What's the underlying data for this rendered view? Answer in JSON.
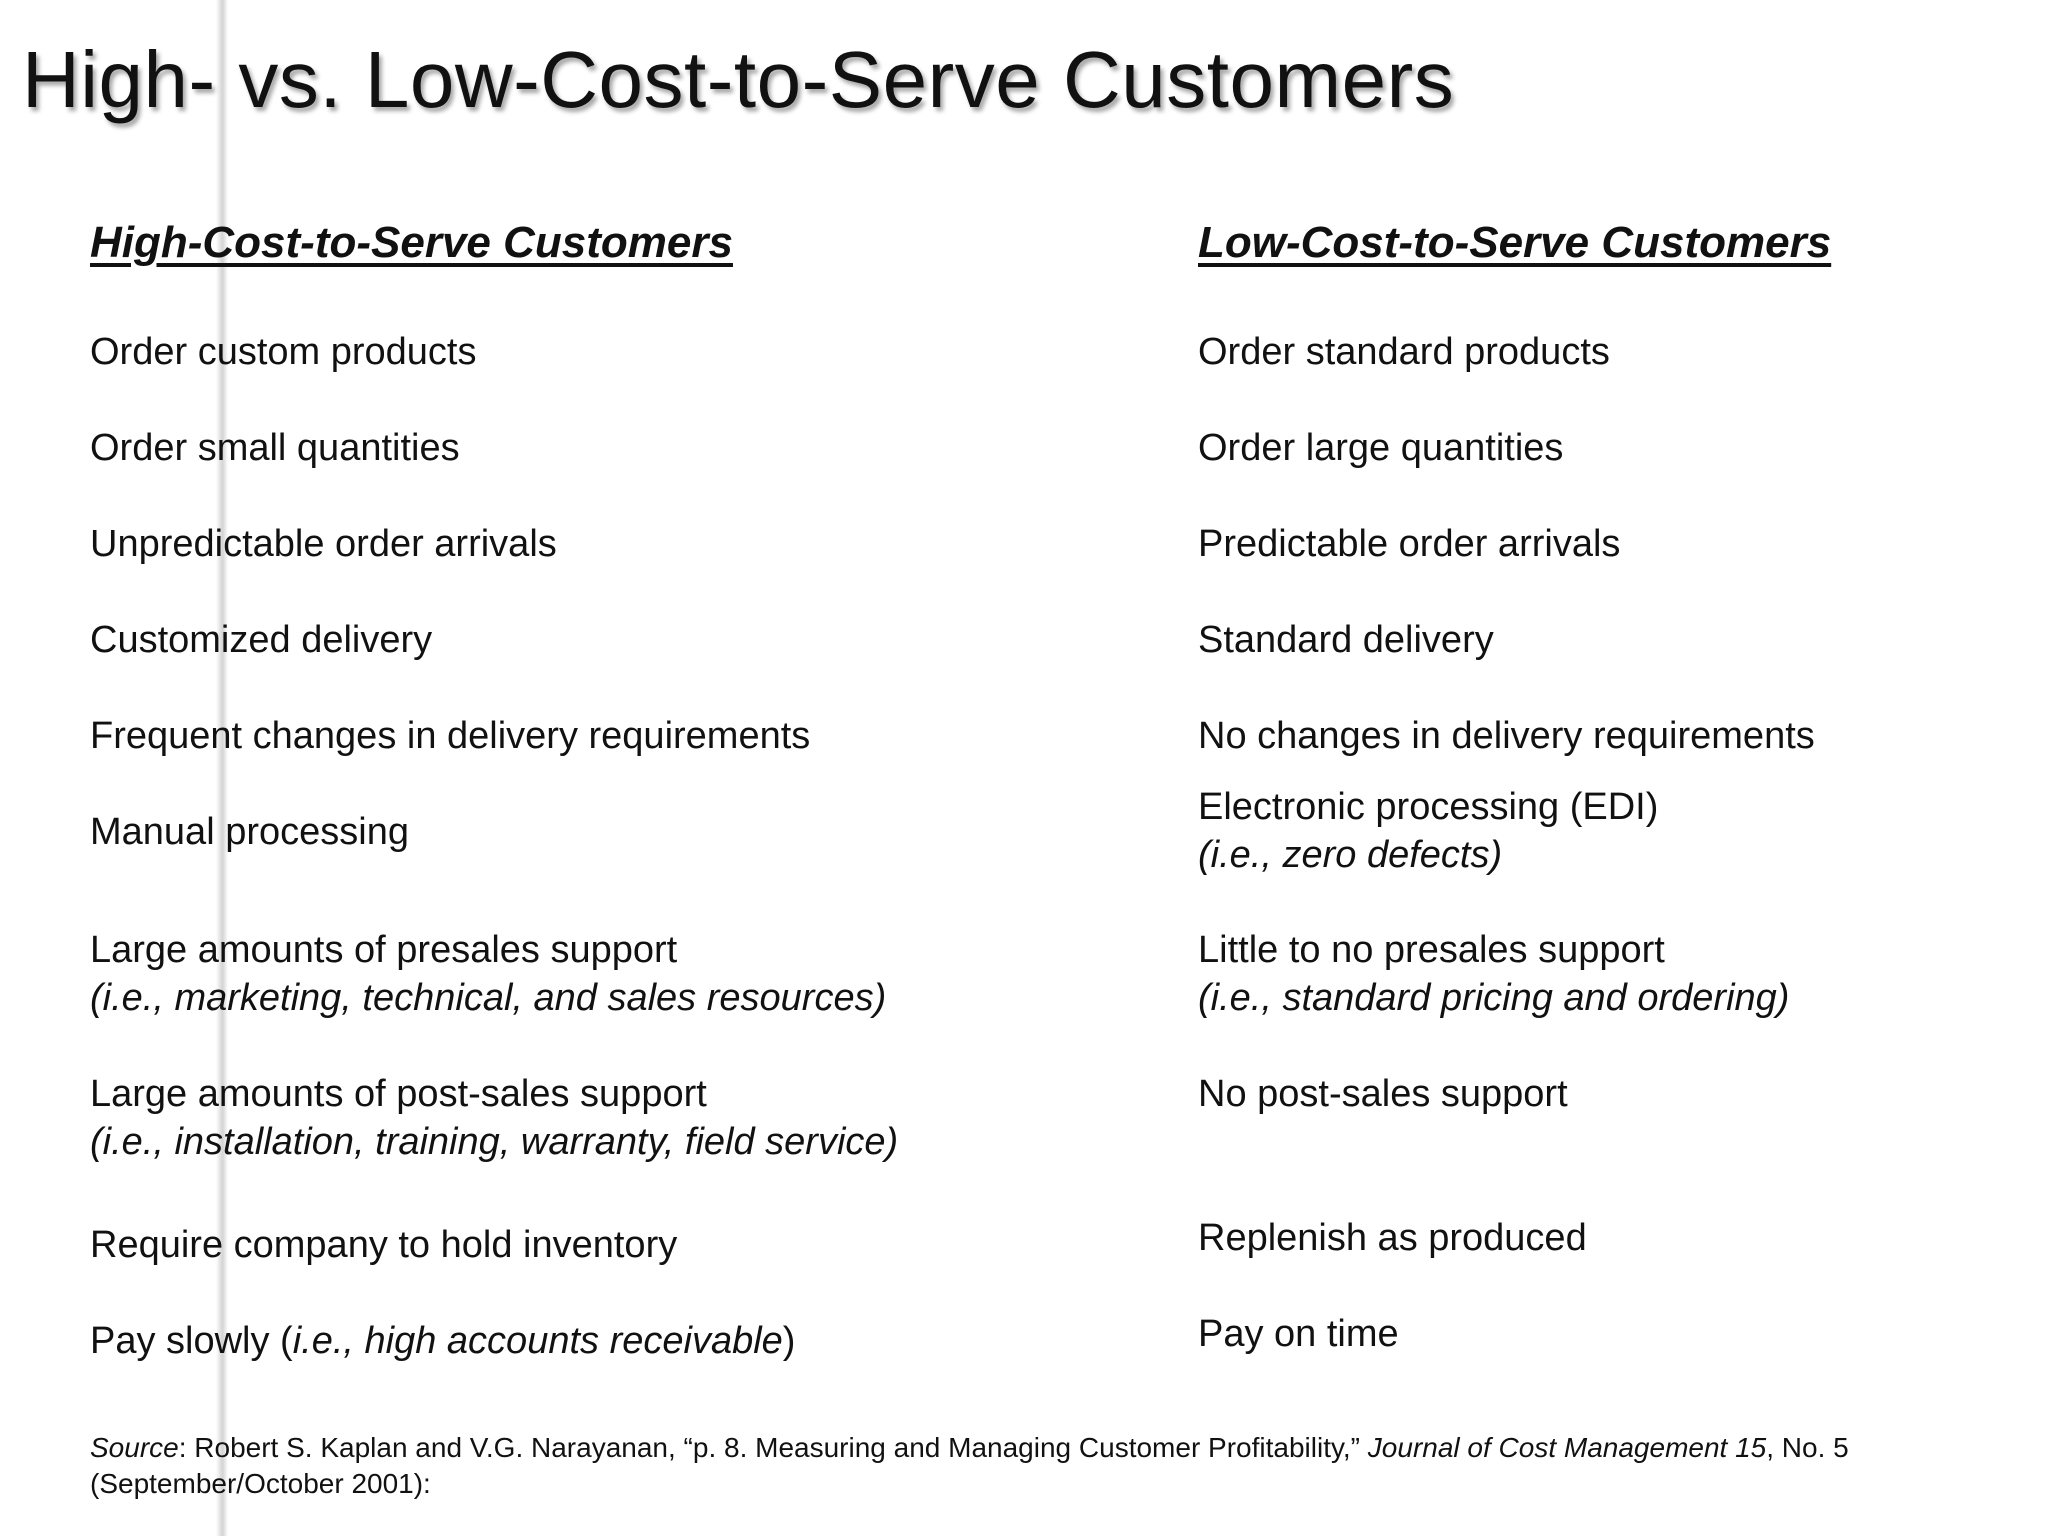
{
  "title": "High- vs. Low-Cost-to-Serve Customers",
  "high": {
    "heading": "High-Cost-to-Serve Customers",
    "items": [
      {
        "main": "Order custom products"
      },
      {
        "main": "Order small quantities"
      },
      {
        "main": "Unpredictable order arrivals"
      },
      {
        "main": "Customized delivery"
      },
      {
        "main": "Frequent changes in delivery requirements"
      },
      {
        "main": "Manual processing"
      },
      {
        "main": "Large amounts of presales support",
        "sub": "(i.e., marketing, technical, and sales resources)"
      },
      {
        "main": "Large amounts of post-sales support",
        "sub": "(i.e., installation, training, warranty, field service)"
      },
      {
        "main": "Require company to hold inventory"
      },
      {
        "main_pre": "Pay slowly (",
        "main_italic": "i.e., high accounts receivable",
        "main_post": ")"
      }
    ]
  },
  "low": {
    "heading": "Low-Cost-to-Serve Customers",
    "items": [
      {
        "main": "Order standard products"
      },
      {
        "main": "Order large quantities"
      },
      {
        "main": "Predictable order arrivals"
      },
      {
        "main": "Standard delivery"
      },
      {
        "main": "No changes in delivery requirements"
      },
      {
        "main": "Electronic processing (EDI)",
        "sub": "(i.e., zero defects)"
      },
      {
        "main": "Little to no presales support",
        "sub": "(i.e., standard pricing and ordering)"
      },
      {
        "main": "No post-sales support"
      },
      {
        "main": "Replenish as produced"
      },
      {
        "main": "Pay on time"
      }
    ]
  },
  "source": {
    "label": "Source",
    "text1": ": Robert S. Kaplan and V.G. Narayanan, “p. 8. Measuring and Managing Customer Profitability,” ",
    "journal": "Journal of Cost Management 15",
    "text2": ", No. 5 (September/October 2001):"
  }
}
